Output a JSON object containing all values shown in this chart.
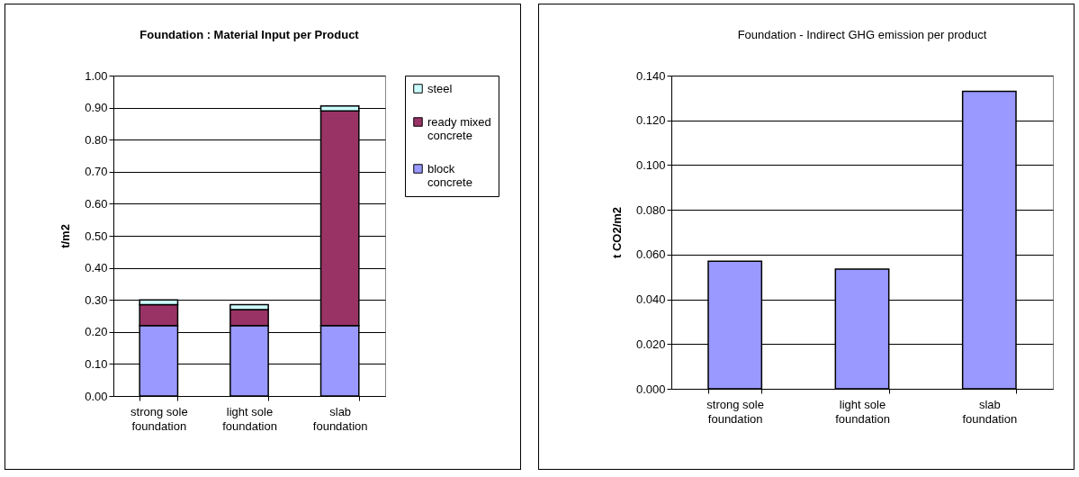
{
  "chart_data": [
    {
      "type": "bar",
      "title": "Foundation : Material Input per Product",
      "ylabel": "t/m2",
      "categories": [
        "strong sole foundation",
        "light sole foundation",
        "slab foundation"
      ],
      "stacked": true,
      "series": [
        {
          "name": "block concrete",
          "color": "#9999ff",
          "values": [
            0.22,
            0.22,
            0.22
          ]
        },
        {
          "name": "ready mixed concrete",
          "color": "#993366",
          "values": [
            0.065,
            0.05,
            0.67
          ]
        },
        {
          "name": "steel",
          "color": "#ccffff",
          "values": [
            0.015,
            0.015,
            0.015
          ]
        }
      ],
      "ylim": [
        0,
        1
      ],
      "yticks": [
        {
          "value": 0,
          "label": "0.00"
        },
        {
          "value": 0.1,
          "label": "0.10"
        },
        {
          "value": 0.2,
          "label": "0.20"
        },
        {
          "value": 0.3,
          "label": "0.30"
        },
        {
          "value": 0.4,
          "label": "0.40"
        },
        {
          "value": 0.5,
          "label": "0.50"
        },
        {
          "value": 0.6,
          "label": "0.60"
        },
        {
          "value": 0.7,
          "label": "0.70"
        },
        {
          "value": 0.8,
          "label": "0.80"
        },
        {
          "value": 0.9,
          "label": "0.90"
        },
        {
          "value": 1,
          "label": "1.00"
        }
      ],
      "grid": "y",
      "legend": "right"
    },
    {
      "type": "bar",
      "title": "Foundation - Indirect GHG emission per product",
      "ylabel": "t CO2/m2",
      "categories": [
        "strong sole foundation",
        "light sole foundation",
        "slab foundation"
      ],
      "series": [
        {
          "color": "#9999ff",
          "values": [
            0.057,
            0.0535,
            0.133
          ]
        }
      ],
      "ylim": [
        0,
        0.14
      ],
      "yticks": [
        {
          "value": 0,
          "label": "0.000"
        },
        {
          "value": 0.02,
          "label": "0.020"
        },
        {
          "value": 0.04,
          "label": "0.040"
        },
        {
          "value": 0.06,
          "label": "0.060"
        },
        {
          "value": 0.08,
          "label": "0.080"
        },
        {
          "value": 0.1,
          "label": "0.100"
        },
        {
          "value": 0.12,
          "label": "0.120"
        },
        {
          "value": 0.14,
          "label": "0.140"
        }
      ],
      "grid": "y",
      "legend": false
    }
  ]
}
